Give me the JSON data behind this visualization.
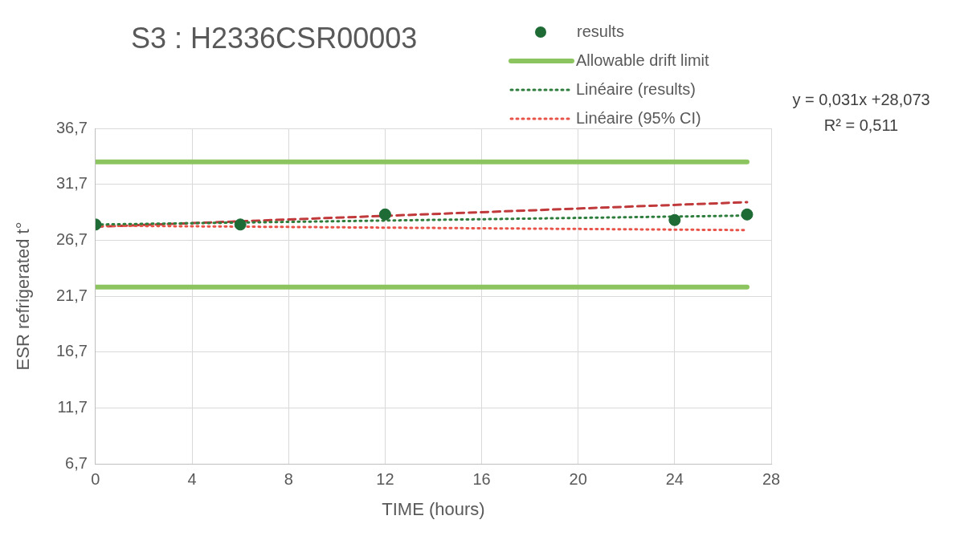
{
  "chart_data": {
    "type": "scatter",
    "title": "S3 : H2336CSR00003",
    "xlabel": "TIME (hours)",
    "ylabel": "ESR refrigerated t°",
    "xlim": [
      0,
      28
    ],
    "xticks": [
      0,
      4,
      8,
      12,
      16,
      20,
      24,
      28
    ],
    "ylim": [
      6.7,
      36.7
    ],
    "yticks": [
      {
        "value": 6.7,
        "label": "6,7"
      },
      {
        "value": 11.7,
        "label": "11,7"
      },
      {
        "value": 16.7,
        "label": "16,7"
      },
      {
        "value": 21.7,
        "label": "21,7"
      },
      {
        "value": 26.7,
        "label": "26,7"
      },
      {
        "value": 31.7,
        "label": "31,7"
      },
      {
        "value": 36.7,
        "label": "36,7"
      }
    ],
    "grid": true,
    "legend": "top right",
    "annotations": [
      "y = 0,031x +28,073",
      "R² = 0,511"
    ],
    "series": [
      {
        "name": "results",
        "type": "scatter",
        "marker": "circle",
        "color": "#1e6b35",
        "x": [
          0,
          6,
          12,
          24,
          27
        ],
        "values": [
          28.1,
          28.1,
          29.0,
          28.5,
          29.0
        ]
      },
      {
        "name": "Allowable drift limit",
        "type": "line",
        "marker": "none",
        "line_style": "solid",
        "color": "#8cc55f",
        "x": [
          0,
          27
        ],
        "values": [
          33.7,
          33.7
        ]
      },
      {
        "type": "line",
        "marker": "none",
        "line_style": "solid",
        "color": "#8cc55f",
        "x": [
          0,
          27
        ],
        "values": [
          22.5,
          22.5
        ]
      },
      {
        "name": "Linéaire (results)",
        "type": "line",
        "marker": "none",
        "line_style": "dotted",
        "color": "#2e7d3c",
        "x": [
          0,
          27
        ],
        "values": [
          28.1,
          28.9
        ]
      },
      {
        "name": "Linéaire (95% CI)",
        "type": "line",
        "marker": "none",
        "line_style": "dotted",
        "color": "#e8534a",
        "x": [
          0,
          27
        ],
        "values": [
          28.0,
          27.6
        ]
      },
      {
        "type": "line",
        "marker": "none",
        "line_style": "dashed",
        "color": "#c0393b",
        "x": [
          0,
          27
        ],
        "values": [
          27.9,
          30.1
        ]
      }
    ]
  }
}
